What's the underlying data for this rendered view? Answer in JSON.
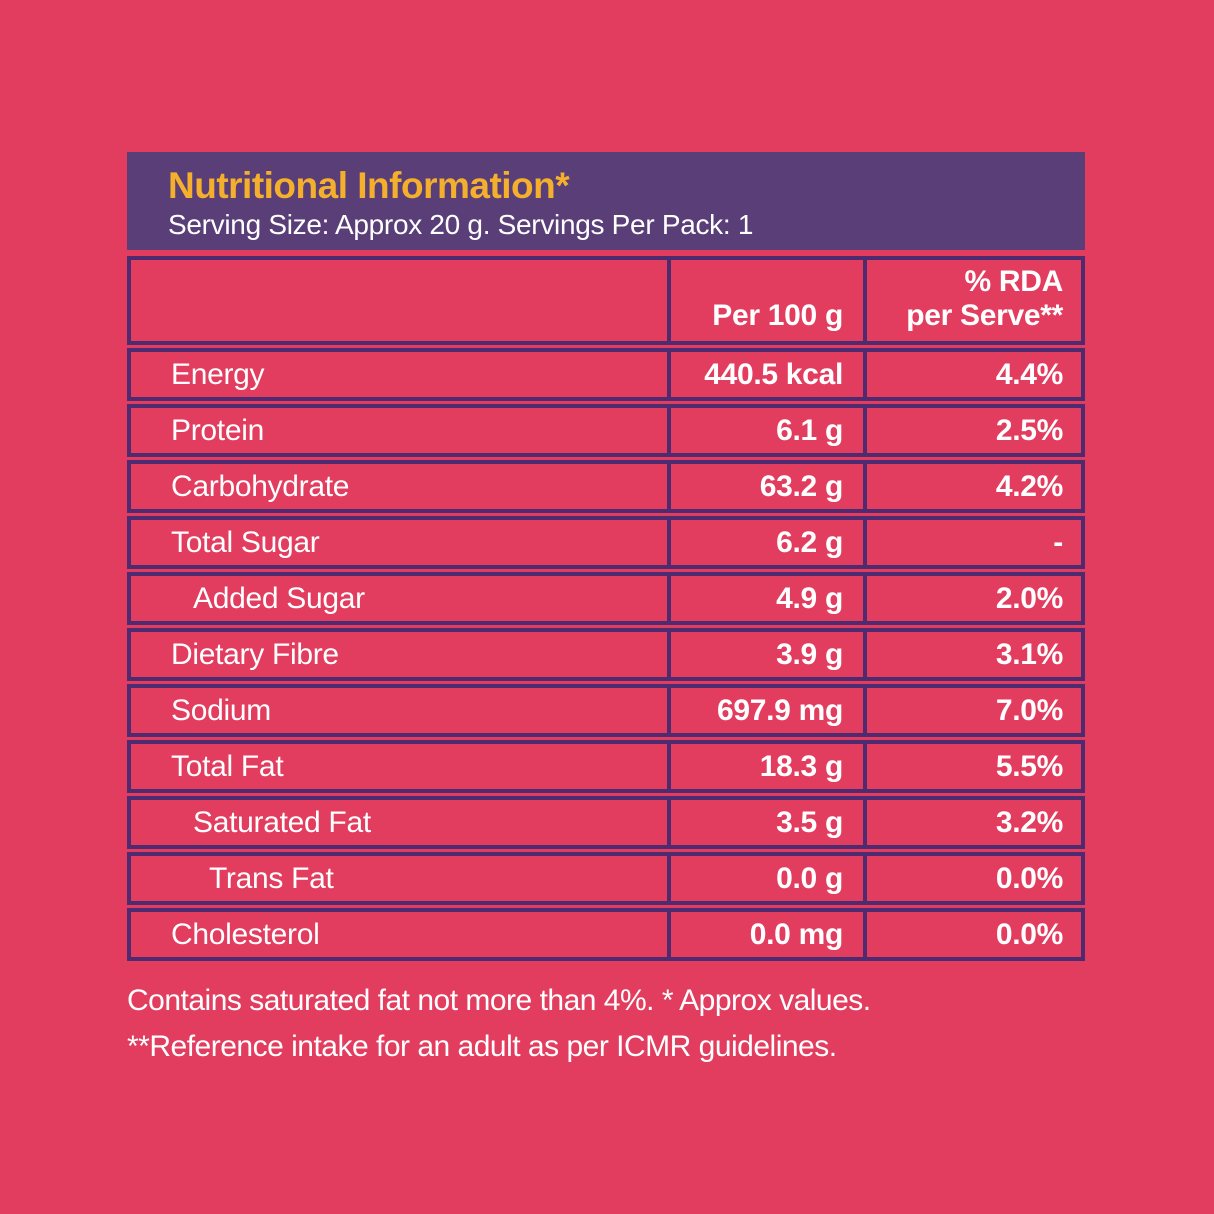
{
  "panel": {
    "title": "Nutritional Information*",
    "subtitle": "Serving Size: Approx 20 g. Servings Per Pack: 1"
  },
  "table": {
    "columns": {
      "nutrient": "",
      "amount": "Per 100 g",
      "rda_line1": "% RDA",
      "rda_line2": "per Serve**"
    },
    "rows": [
      {
        "label": "Energy",
        "amount": "440.5 kcal",
        "rda": "4.4%",
        "indent": 0
      },
      {
        "label": "Protein",
        "amount": "6.1 g",
        "rda": "2.5%",
        "indent": 0
      },
      {
        "label": "Carbohydrate",
        "amount": "63.2 g",
        "rda": "4.2%",
        "indent": 0
      },
      {
        "label": "Total Sugar",
        "amount": "6.2 g",
        "rda": "-",
        "indent": 0
      },
      {
        "label": "Added Sugar",
        "amount": "4.9 g",
        "rda": "2.0%",
        "indent": 1
      },
      {
        "label": "Dietary Fibre",
        "amount": "3.9 g",
        "rda": "3.1%",
        "indent": 0
      },
      {
        "label": "Sodium",
        "amount": "697.9 mg",
        "rda": "7.0%",
        "indent": 0
      },
      {
        "label": "Total Fat",
        "amount": "18.3 g",
        "rda": "5.5%",
        "indent": 0
      },
      {
        "label": "Saturated Fat",
        "amount": "3.5 g",
        "rda": "3.2%",
        "indent": 1
      },
      {
        "label": "Trans Fat",
        "amount": "0.0 g",
        "rda": "0.0%",
        "indent": 2
      },
      {
        "label": "Cholesterol",
        "amount": "0.0 mg",
        "rda": "0.0%",
        "indent": 0
      }
    ]
  },
  "footnotes": {
    "line1": "Contains saturated fat not more than 4%. * Approx values.",
    "line2": "**Reference intake for an adult as per ICMR guidelines."
  },
  "colors": {
    "background_pink": "#e23d5f",
    "header_purple": "#5a3e78",
    "table_border_purple": "#4e2a70",
    "title_yellow": "#f4b02c",
    "text_white": "#ffffff"
  }
}
